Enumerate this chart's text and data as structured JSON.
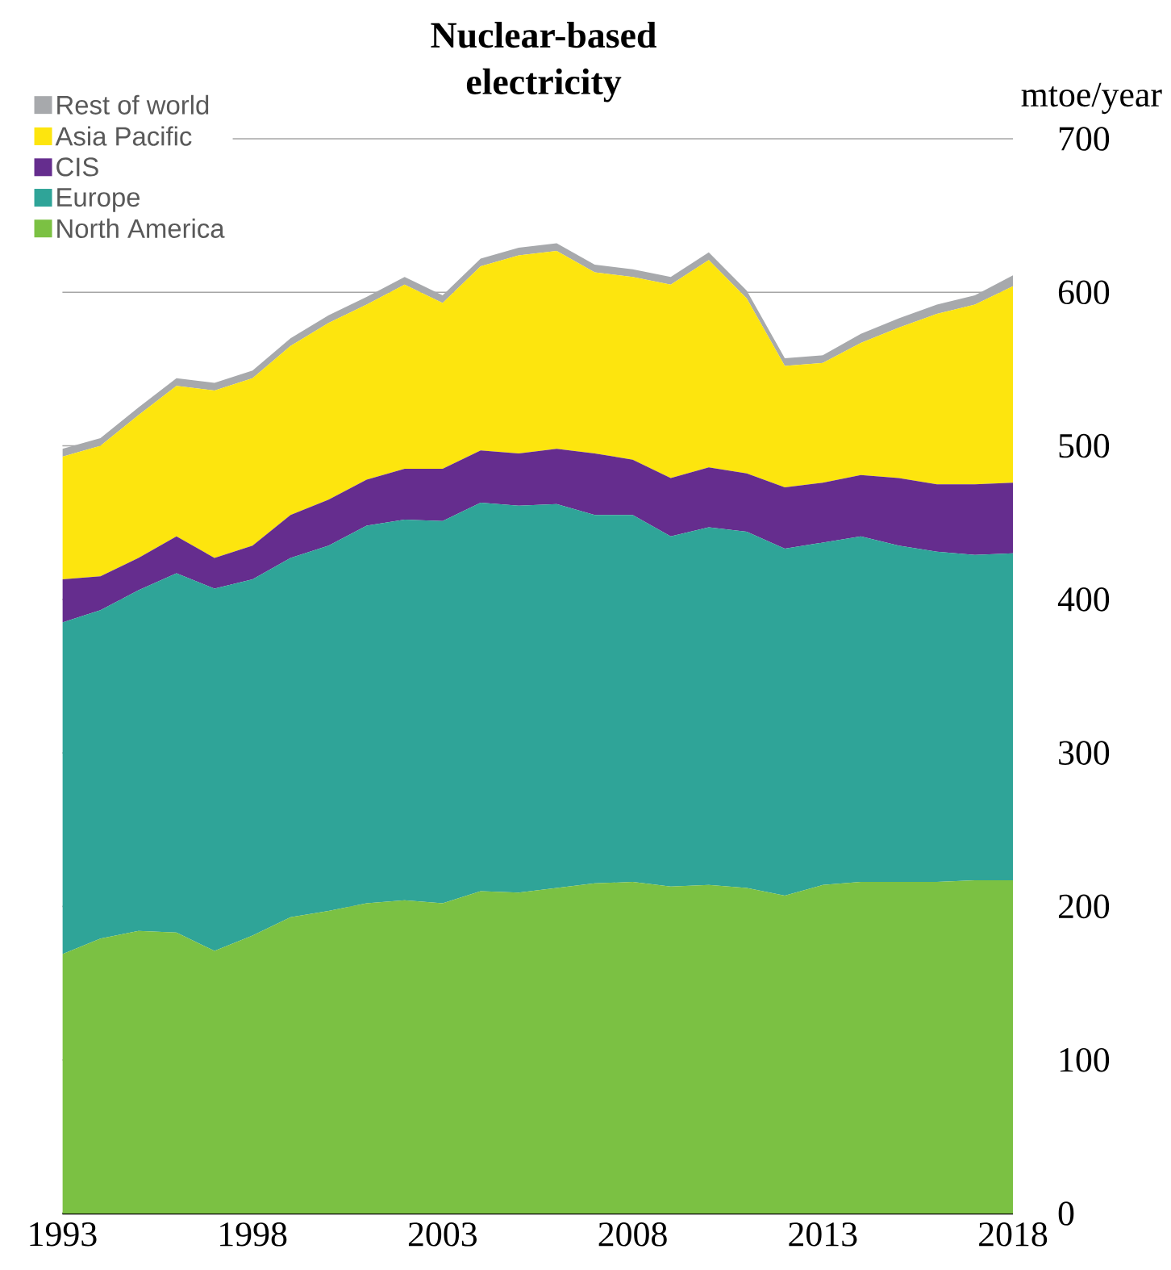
{
  "chart_data": {
    "type": "area",
    "title": "Nuclear-based electricity",
    "ylabel": "mtoe/year",
    "stacked": true,
    "legend": "top left",
    "grid": "y",
    "x": [
      1993,
      1994,
      1995,
      1996,
      1997,
      1998,
      1999,
      2000,
      2001,
      2002,
      2003,
      2004,
      2005,
      2006,
      2007,
      2008,
      2009,
      2010,
      2011,
      2012,
      2013,
      2014,
      2015,
      2016,
      2017,
      2018
    ],
    "series": [
      {
        "name": "North America",
        "color": "#7bc143",
        "values": [
          169,
          179,
          184,
          183,
          171,
          181,
          193,
          197,
          202,
          204,
          202,
          210,
          209,
          212,
          215,
          216,
          213,
          214,
          212,
          207,
          214,
          216,
          216,
          216,
          217,
          217
        ]
      },
      {
        "name": "Europe",
        "color": "#2fa498",
        "values": [
          216,
          214,
          222,
          234,
          236,
          232,
          234,
          238,
          246,
          248,
          249,
          253,
          252,
          250,
          240,
          239,
          228,
          233,
          232,
          226,
          223,
          225,
          219,
          215,
          212,
          213
        ]
      },
      {
        "name": "CIS",
        "color": "#652d8e",
        "values": [
          28,
          22,
          21,
          24,
          20,
          22,
          28,
          30,
          30,
          33,
          34,
          34,
          34,
          36,
          40,
          36,
          38,
          39,
          38,
          40,
          39,
          40,
          44,
          44,
          46,
          46
        ]
      },
      {
        "name": "Asia Pacific",
        "color": "#fde50e",
        "values": [
          80,
          85,
          93,
          98,
          109,
          109,
          110,
          115,
          114,
          120,
          108,
          120,
          129,
          129,
          118,
          119,
          126,
          135,
          114,
          79,
          78,
          86,
          98,
          111,
          117,
          128
        ]
      },
      {
        "name": "Rest of world",
        "color": "#a7a9ac",
        "values": [
          5,
          5,
          5,
          5,
          5,
          5,
          5,
          5,
          5,
          5,
          5,
          5,
          5,
          5,
          5,
          5,
          5,
          5,
          5,
          5,
          5,
          6,
          6,
          6,
          6,
          7
        ]
      }
    ],
    "xlim": [
      1993,
      2018
    ],
    "xticks": [
      1993,
      1998,
      2003,
      2008,
      2013,
      2018
    ],
    "ylim": [
      0,
      700
    ],
    "yticks": [
      0,
      100,
      200,
      300,
      400,
      500,
      600,
      700
    ]
  }
}
